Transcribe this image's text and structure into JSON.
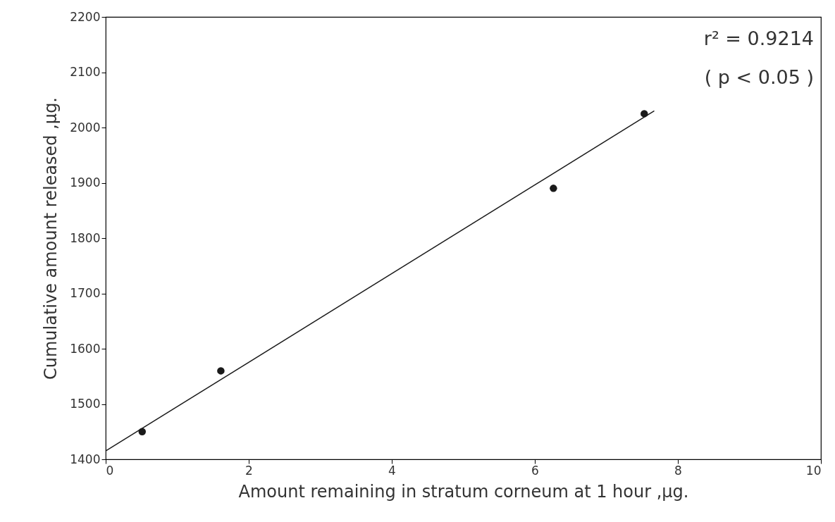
{
  "chart_data": {
    "type": "scatter",
    "xlabel": "Amount remaining in stratum corneum at 1 hour ,μg.",
    "ylabel": "Cumulative amount released ,μg.",
    "series": [
      {
        "marker": "circle",
        "color": "#1a1a1a",
        "x": [
          0.51,
          1.61,
          6.26,
          7.53
        ],
        "values": [
          1450,
          1560,
          1890,
          2025
        ]
      },
      {
        "type": "line",
        "color": "#1a1a1a",
        "x": [
          0,
          7.67
        ],
        "values": [
          1415,
          2030
        ]
      }
    ],
    "xlim": [
      0,
      10
    ],
    "xticks": [
      0,
      2,
      4,
      6,
      8,
      10
    ],
    "ylim": [
      1400,
      2200
    ],
    "yticks": [
      1400,
      1500,
      1600,
      1700,
      1800,
      1900,
      2000,
      2100,
      2200
    ],
    "grid": false,
    "line_style": "solid",
    "annotations": [
      "r² = 0.9214",
      "( p < 0.05 )"
    ]
  }
}
